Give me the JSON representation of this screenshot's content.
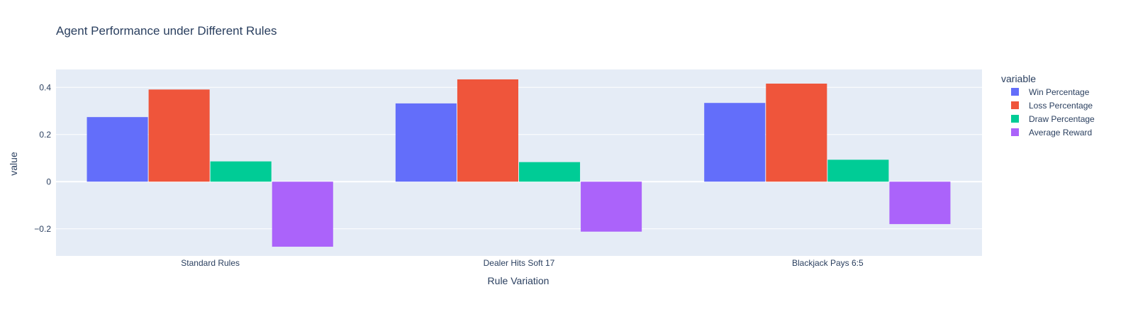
{
  "chart_data": {
    "type": "bar",
    "title": "Agent Performance under Different Rules",
    "xlabel": "Rule Variation",
    "ylabel": "value",
    "categories": [
      "Standard Rules",
      "Dealer Hits Soft 17",
      "Blackjack Pays 6:5"
    ],
    "series": [
      {
        "name": "Win Percentage",
        "color": "#636efa",
        "values": [
          0.274,
          0.332,
          0.334
        ]
      },
      {
        "name": "Loss Percentage",
        "color": "#ef553b",
        "values": [
          0.391,
          0.434,
          0.416
        ]
      },
      {
        "name": "Draw Percentage",
        "color": "#00cc96",
        "values": [
          0.086,
          0.083,
          0.093
        ]
      },
      {
        "name": "Average Reward",
        "color": "#ab63fa",
        "values": [
          -0.276,
          -0.212,
          -0.18
        ]
      }
    ],
    "ylim": [
      -0.315,
      0.476
    ],
    "yticks": [
      {
        "value": 0.4,
        "label": "0.4"
      },
      {
        "value": 0.2,
        "label": "0.2"
      },
      {
        "value": 0,
        "label": "0"
      },
      {
        "value": -0.2,
        "label": "−0.2"
      }
    ],
    "legend_title": "variable",
    "legend_position": "right",
    "grid": true,
    "plot_background": "#e5ecf6"
  }
}
